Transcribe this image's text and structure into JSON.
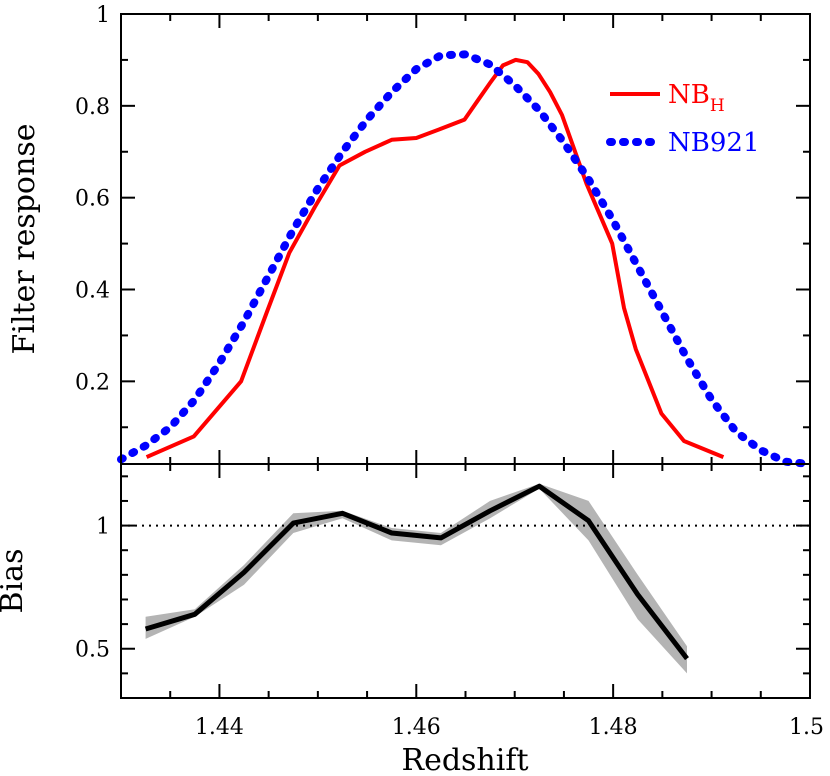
{
  "chart_data": [
    {
      "type": "line",
      "panel": "top",
      "ylabel": "Filter response",
      "xlim": [
        1.43,
        1.5
      ],
      "ylim": [
        0.02,
        1.0
      ],
      "yticks": [
        0.2,
        0.4,
        0.6,
        0.8,
        1
      ],
      "ytick_labels": [
        "0.2",
        "0.4",
        "0.6",
        "0.8",
        "1"
      ],
      "legend_position": "top-right",
      "series": [
        {
          "name": "NB",
          "name_subscript": "H",
          "color": "#ff0000",
          "style": "solid",
          "x": [
            1.4326,
            1.4374,
            1.4422,
            1.4448,
            1.4471,
            1.4497,
            1.4522,
            1.4548,
            1.4575,
            1.46,
            1.4625,
            1.4649,
            1.4662,
            1.4675,
            1.4688,
            1.4701,
            1.4713,
            1.4724,
            1.4736,
            1.4748,
            1.4773,
            1.4799,
            1.4811,
            1.4823,
            1.4849,
            1.4872,
            1.4912
          ],
          "y": [
            0.035,
            0.08,
            0.2,
            0.35,
            0.48,
            0.58,
            0.67,
            0.7,
            0.726,
            0.73,
            0.75,
            0.77,
            0.81,
            0.85,
            0.888,
            0.9,
            0.895,
            0.87,
            0.83,
            0.78,
            0.63,
            0.5,
            0.36,
            0.27,
            0.13,
            0.07,
            0.035
          ]
        },
        {
          "name": "NB921",
          "color": "#0000ff",
          "style": "dotted",
          "x": [
            1.43,
            1.4325,
            1.435,
            1.4375,
            1.44,
            1.4425,
            1.445,
            1.4475,
            1.45,
            1.4525,
            1.455,
            1.4575,
            1.46,
            1.4625,
            1.465,
            1.4675,
            1.47,
            1.4725,
            1.475,
            1.4775,
            1.48,
            1.4825,
            1.485,
            1.4875,
            1.49,
            1.4925,
            1.495,
            1.4975,
            1.5
          ],
          "y": [
            0.03,
            0.06,
            0.1,
            0.16,
            0.24,
            0.33,
            0.43,
            0.53,
            0.62,
            0.7,
            0.77,
            0.83,
            0.88,
            0.91,
            0.912,
            0.89,
            0.845,
            0.79,
            0.72,
            0.64,
            0.55,
            0.45,
            0.35,
            0.25,
            0.16,
            0.09,
            0.05,
            0.025,
            0.02
          ]
        }
      ]
    },
    {
      "type": "line",
      "panel": "bottom",
      "xlabel": "Redshift",
      "ylabel": "Bias",
      "xlim": [
        1.43,
        1.5
      ],
      "ylim": [
        0.3,
        1.25
      ],
      "xticks": [
        1.44,
        1.46,
        1.48,
        1.5
      ],
      "xtick_labels": [
        "1.44",
        "1.46",
        "1.48",
        "1.5"
      ],
      "yticks": [
        0.5,
        1
      ],
      "ytick_labels": [
        "0.5",
        "1"
      ],
      "reference_line": 1.0,
      "series": [
        {
          "color": "#000000",
          "band_color": "#b4b4b4",
          "x": [
            1.4325,
            1.4375,
            1.4425,
            1.4475,
            1.4525,
            1.4575,
            1.4625,
            1.4675,
            1.4725,
            1.4775,
            1.4825,
            1.4875
          ],
          "y": [
            0.58,
            0.64,
            0.81,
            1.01,
            1.05,
            0.97,
            0.95,
            1.06,
            1.16,
            1.02,
            0.72,
            0.46
          ],
          "y_low": [
            0.54,
            0.63,
            0.76,
            0.97,
            1.03,
            0.94,
            0.92,
            1.03,
            1.15,
            0.94,
            0.62,
            0.4
          ],
          "y_high": [
            0.63,
            0.66,
            0.84,
            1.05,
            1.06,
            0.99,
            0.97,
            1.1,
            1.17,
            1.1,
            0.8,
            0.51
          ]
        }
      ]
    }
  ]
}
